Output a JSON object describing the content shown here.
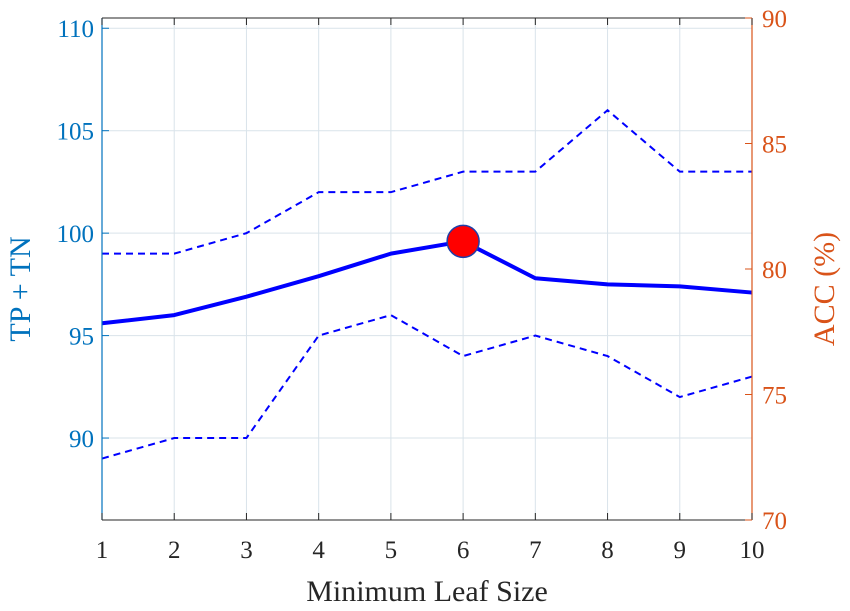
{
  "chart_data": {
    "type": "line",
    "xlabel": "Minimum Leaf Size",
    "ylabel_left": "TP + TN",
    "ylabel_right": "ACC (%)",
    "xlim": [
      1,
      10
    ],
    "ylim_left": [
      86,
      110.5
    ],
    "ylim_right": [
      70,
      90
    ],
    "x_ticks": [
      "1",
      "2",
      "3",
      "4",
      "5",
      "6",
      "7",
      "8",
      "9",
      "10"
    ],
    "y_left_ticks": [
      "90",
      "95",
      "100",
      "105",
      "110"
    ],
    "y_right_ticks": [
      "70",
      "75",
      "80",
      "85",
      "90"
    ],
    "grid": true,
    "x": [
      1,
      2,
      3,
      4,
      5,
      6,
      7,
      8,
      9,
      10
    ],
    "series": [
      {
        "style": "solid",
        "values": [
          95.6,
          96.0,
          96.9,
          97.9,
          99.0,
          99.6,
          97.8,
          97.5,
          97.4,
          97.1
        ]
      },
      {
        "style": "dashed",
        "values": [
          99,
          99,
          100,
          102,
          102,
          103,
          103,
          106,
          103,
          103
        ]
      },
      {
        "style": "dashed",
        "values": [
          89,
          90,
          90,
          95,
          96,
          94,
          95,
          94,
          92,
          93
        ]
      }
    ],
    "highlight": {
      "x": 6,
      "y": 99.6
    },
    "colors": {
      "left_axis": "#0072BD",
      "right_axis": "#D95319",
      "line": "#0000FF",
      "marker_fill": "#FF0000",
      "grid": "#D9E3EA"
    }
  }
}
